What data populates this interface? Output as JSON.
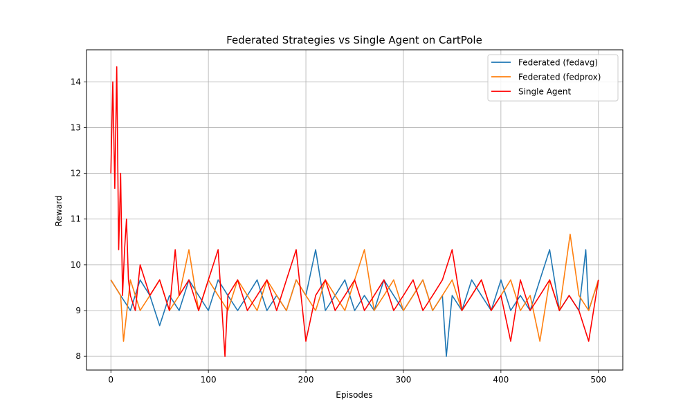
{
  "chart_data": {
    "type": "line",
    "title": "Federated Strategies vs Single Agent on CartPole",
    "xlabel": "Episodes",
    "ylabel": "Reward",
    "xlim": [
      -25,
      525
    ],
    "ylim": [
      7.7,
      14.7
    ],
    "xticks": [
      0,
      100,
      200,
      300,
      400,
      500
    ],
    "yticks": [
      8,
      9,
      10,
      11,
      12,
      13,
      14
    ],
    "grid": true,
    "legend_position": "upper right",
    "series": [
      {
        "name": "Federated (fedavg)",
        "color": "#1f77b4",
        "x": [
          0,
          10,
          20,
          30,
          40,
          50,
          60,
          70,
          80,
          90,
          100,
          110,
          120,
          130,
          140,
          150,
          160,
          170,
          180,
          190,
          200,
          210,
          220,
          230,
          240,
          250,
          260,
          270,
          280,
          290,
          300,
          310,
          320,
          330,
          340,
          344,
          350,
          360,
          370,
          380,
          390,
          400,
          410,
          420,
          430,
          440,
          450,
          460,
          470,
          480,
          487,
          490,
          500
        ],
        "y": [
          9.67,
          9.33,
          9.0,
          9.67,
          9.33,
          8.67,
          9.33,
          9.0,
          9.67,
          9.33,
          9.0,
          9.67,
          9.33,
          9.0,
          9.33,
          9.67,
          9.0,
          9.33,
          9.0,
          9.67,
          9.33,
          10.33,
          9.0,
          9.33,
          9.67,
          9.0,
          9.33,
          9.0,
          9.67,
          9.33,
          9.0,
          9.33,
          9.67,
          9.0,
          9.33,
          8.0,
          9.33,
          9.0,
          9.67,
          9.33,
          9.0,
          9.67,
          9.0,
          9.33,
          9.0,
          9.67,
          10.33,
          9.0,
          9.33,
          9.0,
          10.33,
          9.0,
          9.67
        ]
      },
      {
        "name": "Federated (fedprox)",
        "color": "#ff7f0e",
        "x": [
          0,
          10,
          13,
          20,
          30,
          40,
          50,
          60,
          70,
          80,
          90,
          100,
          110,
          120,
          130,
          140,
          150,
          160,
          170,
          180,
          190,
          200,
          210,
          220,
          230,
          240,
          250,
          260,
          270,
          280,
          290,
          300,
          310,
          320,
          330,
          340,
          350,
          360,
          370,
          380,
          390,
          400,
          410,
          420,
          430,
          440,
          450,
          460,
          471,
          480,
          490,
          500
        ],
        "y": [
          9.67,
          9.33,
          8.33,
          9.67,
          9.0,
          9.33,
          9.67,
          9.0,
          9.33,
          10.33,
          9.0,
          9.67,
          9.33,
          9.0,
          9.67,
          9.33,
          9.0,
          9.67,
          9.33,
          9.0,
          9.67,
          9.33,
          9.0,
          9.67,
          9.33,
          9.0,
          9.67,
          10.33,
          9.0,
          9.33,
          9.67,
          9.0,
          9.33,
          9.67,
          9.0,
          9.33,
          9.67,
          9.0,
          9.33,
          9.67,
          9.0,
          9.33,
          9.67,
          9.0,
          9.33,
          8.33,
          9.67,
          9.0,
          10.67,
          9.33,
          9.0,
          9.67
        ]
      },
      {
        "name": "Single Agent",
        "color": "#ff0000",
        "x": [
          0,
          2,
          4,
          6,
          8,
          10,
          12,
          14,
          16,
          18,
          20,
          25,
          30,
          40,
          50,
          60,
          66,
          70,
          80,
          90,
          100,
          110,
          117,
          120,
          130,
          140,
          150,
          160,
          170,
          180,
          190,
          200,
          210,
          220,
          230,
          240,
          250,
          260,
          270,
          280,
          290,
          300,
          310,
          320,
          330,
          340,
          350,
          360,
          370,
          380,
          390,
          400,
          410,
          420,
          430,
          440,
          450,
          460,
          470,
          480,
          490,
          500
        ],
        "y": [
          12.0,
          14.0,
          11.67,
          14.33,
          10.33,
          12.0,
          9.33,
          10.33,
          11.0,
          9.67,
          9.33,
          9.0,
          10.0,
          9.33,
          9.67,
          9.0,
          10.33,
          9.33,
          9.67,
          9.0,
          9.67,
          10.33,
          8.0,
          9.33,
          9.67,
          9.0,
          9.33,
          9.67,
          9.0,
          9.67,
          10.33,
          8.33,
          9.33,
          9.67,
          9.0,
          9.33,
          9.67,
          9.0,
          9.33,
          9.67,
          9.0,
          9.33,
          9.67,
          9.0,
          9.33,
          9.67,
          10.33,
          9.0,
          9.33,
          9.67,
          9.0,
          9.33,
          8.33,
          9.67,
          9.0,
          9.33,
          9.67,
          9.0,
          9.33,
          9.0,
          8.33,
          9.67
        ]
      }
    ]
  }
}
